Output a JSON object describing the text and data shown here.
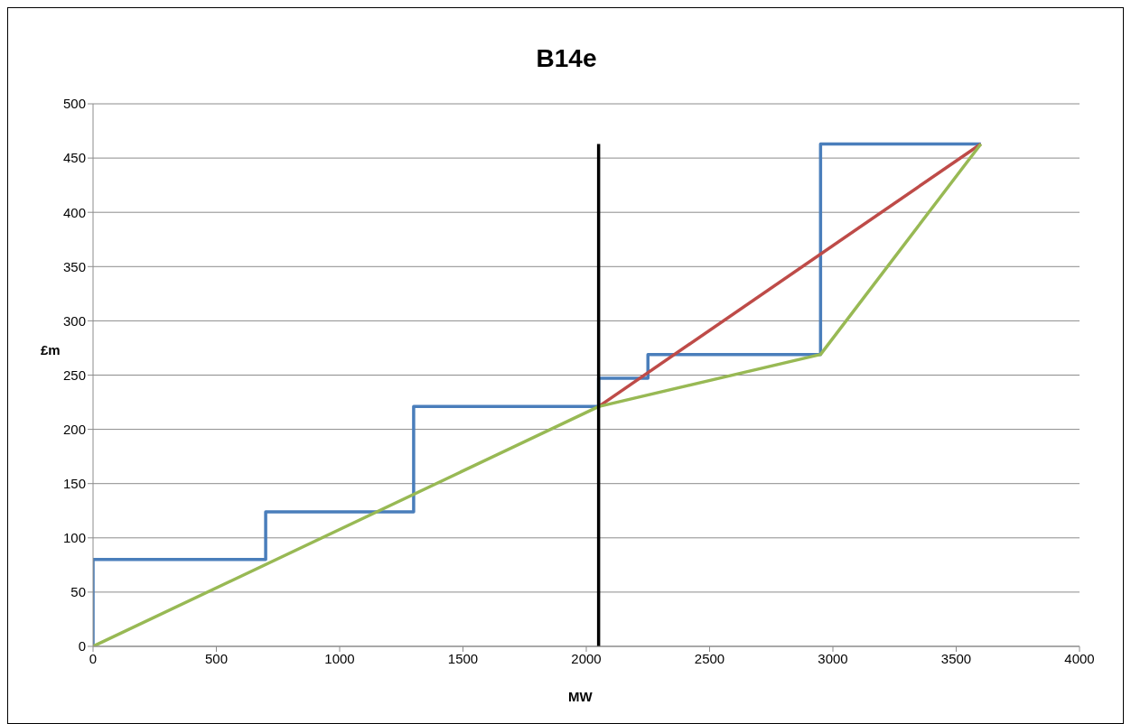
{
  "chart_data": {
    "type": "line",
    "title": "B14e",
    "xlabel": "MW",
    "ylabel": "£m",
    "xlim": [
      0,
      4000
    ],
    "xticks": [
      0,
      500,
      1000,
      1500,
      2000,
      2500,
      3000,
      3500,
      4000
    ],
    "ylim": [
      0,
      500
    ],
    "yticks": [
      0,
      50,
      100,
      150,
      200,
      250,
      300,
      350,
      400,
      450,
      500
    ],
    "grid": "y",
    "marker": "none",
    "line_style": "solid",
    "series": [
      {
        "color": "#4a7ebb",
        "x": [
          0,
          0,
          700,
          700,
          1300,
          1300,
          2050,
          2050,
          2250,
          2250,
          2950,
          2950,
          3600
        ],
        "values": [
          0,
          80,
          80,
          124,
          124,
          221,
          221,
          247,
          247,
          269,
          269,
          463,
          463
        ]
      },
      {
        "color": "#be4b48",
        "x": [
          2050,
          3600
        ],
        "values": [
          221,
          463
        ]
      },
      {
        "color": "#98b954",
        "x": [
          0,
          2050,
          2950,
          3600
        ],
        "values": [
          0,
          221,
          269,
          463
        ]
      },
      {
        "color": "#000000",
        "x": [
          2050,
          2050
        ],
        "values": [
          0,
          463
        ]
      }
    ]
  }
}
